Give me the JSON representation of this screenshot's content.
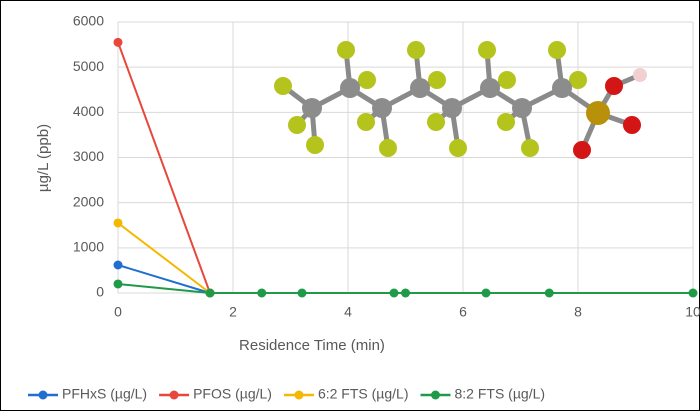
{
  "chart_data": {
    "type": "line",
    "x_label": "Residence Time (min)",
    "y_label": "µg/L (ppb)",
    "xlim": [
      0,
      10
    ],
    "xticks": [
      0,
      2,
      4,
      6,
      8,
      10
    ],
    "ylim": [
      0,
      6000
    ],
    "yticks": [
      0,
      1000,
      2000,
      3000,
      4000,
      5000,
      6000
    ],
    "grid": true,
    "legend": "bottom",
    "series": [
      {
        "name": "PFHxS (µg/L)",
        "color": "#1f6fd1",
        "x": [
          0,
          1.6
        ],
        "values": [
          620,
          0
        ]
      },
      {
        "name": "PFOS (µg/L)",
        "color": "#e8473b",
        "x": [
          0,
          1.6
        ],
        "values": [
          5550,
          0
        ]
      },
      {
        "name": "6:2 FTS (µg/L)",
        "color": "#f5b800",
        "x": [
          0,
          1.6
        ],
        "values": [
          1550,
          0
        ]
      },
      {
        "name": "8:2 FTS (µg/L)",
        "color": "#1e9a48",
        "x": [
          0,
          1.6,
          2.5,
          3.2,
          4.8,
          5.0,
          6.4,
          7.5,
          10
        ],
        "values": [
          200,
          0,
          0,
          0,
          0,
          0,
          0,
          0,
          0
        ]
      }
    ]
  }
}
